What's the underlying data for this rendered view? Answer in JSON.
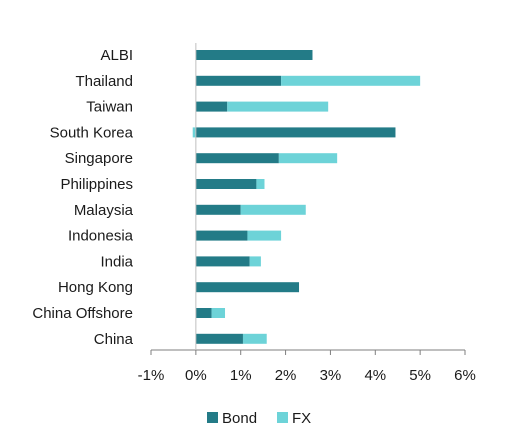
{
  "chart_data": {
    "type": "bar",
    "orientation": "horizontal",
    "stacked": true,
    "categories": [
      "ALBI",
      "Thailand",
      "Taiwan",
      "South Korea",
      "Singapore",
      "Philippines",
      "Malaysia",
      "Indonesia",
      "India",
      "Hong Kong",
      "China Offshore",
      "China"
    ],
    "series": [
      {
        "name": "Bond",
        "color": "#237b87",
        "values": [
          2.6,
          1.9,
          0.7,
          4.45,
          1.85,
          1.35,
          1.0,
          1.15,
          1.2,
          2.3,
          0.35,
          1.05
        ]
      },
      {
        "name": "FX",
        "color": "#6dd3d8",
        "values": [
          0.0,
          3.1,
          2.25,
          -0.07,
          1.3,
          0.18,
          1.45,
          0.75,
          0.25,
          0.0,
          0.3,
          0.53
        ]
      }
    ],
    "xlim": [
      -1,
      6
    ],
    "xticks": [
      -1,
      0,
      1,
      2,
      3,
      4,
      5,
      6
    ],
    "tick_format": "percent",
    "grid": false,
    "legend_position": "bottom-center"
  }
}
